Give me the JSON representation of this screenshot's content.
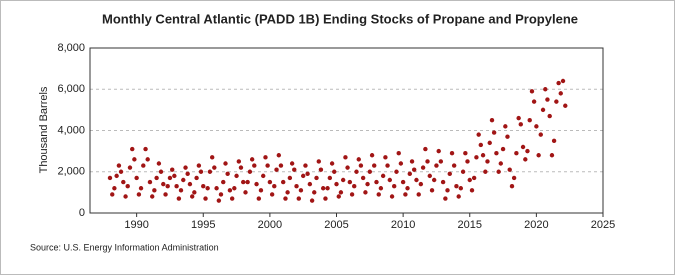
{
  "chart_data": {
    "type": "scatter",
    "title": "Monthly Central Atlantic (PADD 1B) Ending Stocks of Propane and Propylene",
    "y_label": "Thousand Barrels",
    "source": "Source: U.S. Energy Information Administration",
    "color": "#a11515",
    "grid": true,
    "xlim": [
      1986.5,
      2025
    ],
    "xticks": [
      1990,
      1995,
      2000,
      2005,
      2010,
      2015,
      2020,
      2025
    ],
    "ylim": [
      0,
      8000
    ],
    "yticks": [
      0,
      {
        "value": 2000,
        "label": "2,000"
      },
      {
        "value": 4000,
        "label": "4,000"
      },
      {
        "value": 6000,
        "label": "6,000"
      },
      {
        "value": 8000,
        "label": "8,000"
      }
    ],
    "x": [
      1988,
      1988.17,
      1988.33,
      1988.5,
      1988.67,
      1988.83,
      1989,
      1989.17,
      1989.33,
      1989.5,
      1989.67,
      1989.83,
      1990,
      1990.17,
      1990.33,
      1990.5,
      1990.67,
      1990.83,
      1991,
      1991.17,
      1991.33,
      1991.5,
      1991.67,
      1991.83,
      1992,
      1992.17,
      1992.33,
      1992.5,
      1992.67,
      1992.83,
      1993,
      1993.17,
      1993.33,
      1993.5,
      1993.67,
      1993.83,
      1994,
      1994.17,
      1994.33,
      1994.5,
      1994.67,
      1994.83,
      1995,
      1995.17,
      1995.33,
      1995.5,
      1995.67,
      1995.83,
      1996,
      1996.17,
      1996.33,
      1996.5,
      1996.67,
      1996.83,
      1997,
      1997.17,
      1997.33,
      1997.5,
      1997.67,
      1997.83,
      1998,
      1998.17,
      1998.33,
      1998.5,
      1998.67,
      1998.83,
      1999,
      1999.17,
      1999.33,
      1999.5,
      1999.67,
      1999.83,
      2000,
      2000.17,
      2000.33,
      2000.5,
      2000.67,
      2000.83,
      2001,
      2001.17,
      2001.33,
      2001.5,
      2001.67,
      2001.83,
      2002,
      2002.17,
      2002.33,
      2002.5,
      2002.67,
      2002.83,
      2003,
      2003.17,
      2003.33,
      2003.5,
      2003.67,
      2003.83,
      2004,
      2004.17,
      2004.33,
      2004.5,
      2004.67,
      2004.83,
      2005,
      2005.17,
      2005.33,
      2005.5,
      2005.67,
      2005.83,
      2006,
      2006.17,
      2006.33,
      2006.5,
      2006.67,
      2006.83,
      2007,
      2007.17,
      2007.33,
      2007.5,
      2007.67,
      2007.83,
      2008,
      2008.17,
      2008.33,
      2008.5,
      2008.67,
      2008.83,
      2009,
      2009.17,
      2009.33,
      2009.5,
      2009.67,
      2009.83,
      2010,
      2010.17,
      2010.33,
      2010.5,
      2010.67,
      2010.83,
      2011,
      2011.17,
      2011.33,
      2011.5,
      2011.67,
      2011.83,
      2012,
      2012.17,
      2012.33,
      2012.5,
      2012.67,
      2012.83,
      2013,
      2013.17,
      2013.33,
      2013.5,
      2013.67,
      2013.83,
      2014,
      2014.17,
      2014.33,
      2014.5,
      2014.67,
      2014.83,
      2015,
      2015.17,
      2015.33,
      2015.5,
      2015.67,
      2015.83,
      2016,
      2016.17,
      2016.33,
      2016.5,
      2016.67,
      2016.83,
      2017,
      2017.17,
      2017.33,
      2017.5,
      2017.67,
      2017.83,
      2018,
      2018.17,
      2018.33,
      2018.5,
      2018.67,
      2018.83,
      2019,
      2019.17,
      2019.33,
      2019.5,
      2019.67,
      2019.83,
      2020,
      2020.17,
      2020.33,
      2020.5,
      2020.67,
      2020.83,
      2021,
      2021.17,
      2021.33,
      2021.5,
      2021.67,
      2021.83,
      2022,
      2022.17
    ],
    "values": [
      1700,
      900,
      1200,
      1800,
      2300,
      2000,
      1500,
      800,
      1300,
      2200,
      3100,
      2600,
      1700,
      900,
      1200,
      2300,
      3100,
      2600,
      1500,
      800,
      1100,
      1700,
      2400,
      2000,
      1400,
      900,
      1300,
      1700,
      2100,
      1800,
      1300,
      700,
      1100,
      1600,
      2200,
      1900,
      1400,
      800,
      1000,
      1700,
      2300,
      2000,
      1300,
      700,
      1200,
      2000,
      2700,
      2200,
      1200,
      600,
      900,
      1500,
      2400,
      1900,
      1100,
      700,
      1200,
      1800,
      2500,
      2200,
      1500,
      1000,
      1500,
      2000,
      2600,
      2300,
      1400,
      700,
      1100,
      1800,
      2700,
      2300,
      1500,
      900,
      1300,
      2100,
      2800,
      2300,
      1500,
      700,
      1000,
      1700,
      2400,
      2100,
      1300,
      700,
      1100,
      1800,
      2300,
      1900,
      1400,
      600,
      1000,
      1700,
      2500,
      2100,
      1200,
      700,
      1200,
      1700,
      2400,
      2000,
      1400,
      800,
      1000,
      1600,
      2700,
      2200,
      1500,
      900,
      1300,
      2000,
      2600,
      2300,
      1700,
      1000,
      1400,
      2000,
      2800,
      2300,
      1500,
      900,
      1200,
      1800,
      2700,
      2300,
      1600,
      800,
      1300,
      2000,
      2900,
      2400,
      1500,
      900,
      1200,
      1900,
      2500,
      2100,
      1600,
      900,
      1400,
      2200,
      3100,
      2500,
      1800,
      1100,
      1600,
      2300,
      3000,
      2500,
      1500,
      700,
      1100,
      1900,
      2900,
      2300,
      1300,
      800,
      1200,
      2000,
      2900,
      2500,
      1600,
      1100,
      1700,
      2700,
      3800,
      3300,
      2800,
      2000,
      2500,
      3400,
      4500,
      3900,
      2900,
      2000,
      2400,
      3100,
      4200,
      3700,
      2100,
      1300,
      1700,
      2900,
      4600,
      4300,
      3200,
      2600,
      3000,
      4500,
      5900,
      5400,
      4200,
      2800,
      3800,
      5000,
      6000,
      5500,
      4700,
      2800,
      3500,
      5400,
      6300,
      5800,
      6400,
      5200
    ]
  }
}
